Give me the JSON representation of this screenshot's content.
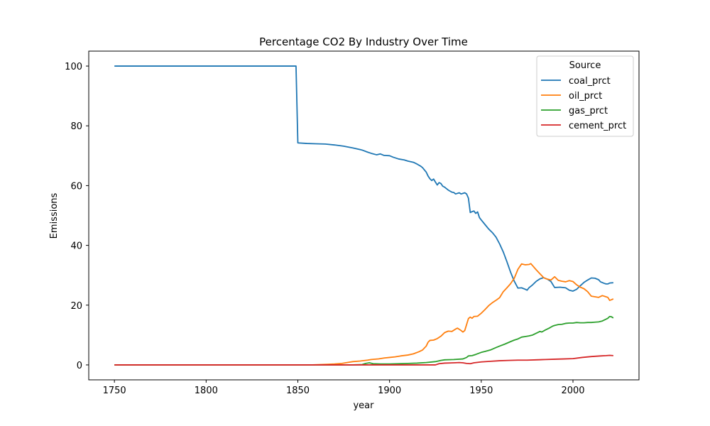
{
  "chart_data": {
    "type": "line",
    "title": "Percentage CO2 By Industry Over Time",
    "xlabel": "year",
    "ylabel": "Emissions",
    "xlim": [
      1736,
      2036
    ],
    "ylim": [
      -5,
      105
    ],
    "xticks": [
      1750,
      1800,
      1850,
      1900,
      1950,
      2000
    ],
    "yticks": [
      0,
      20,
      40,
      60,
      80,
      100
    ],
    "grid": false,
    "legend": {
      "title": "Source",
      "placement": "top-right"
    },
    "series": [
      {
        "name": "coal_prct",
        "color": "#1f77b4",
        "points": [
          [
            1750,
            100
          ],
          [
            1849,
            100
          ],
          [
            1850,
            74.3
          ],
          [
            1855,
            74.1
          ],
          [
            1860,
            74
          ],
          [
            1865,
            73.9
          ],
          [
            1870,
            73.6
          ],
          [
            1875,
            73.2
          ],
          [
            1880,
            72.6
          ],
          [
            1885,
            71.9
          ],
          [
            1888,
            71.2
          ],
          [
            1890,
            70.8
          ],
          [
            1893,
            70.3
          ],
          [
            1895,
            70.6
          ],
          [
            1897,
            70.1
          ],
          [
            1900,
            70
          ],
          [
            1902,
            69.5
          ],
          [
            1905,
            68.9
          ],
          [
            1908,
            68.6
          ],
          [
            1910,
            68.2
          ],
          [
            1913,
            67.8
          ],
          [
            1915,
            67.2
          ],
          [
            1917,
            66.5
          ],
          [
            1918,
            66
          ],
          [
            1920,
            64.5
          ],
          [
            1921,
            63.2
          ],
          [
            1922,
            62.3
          ],
          [
            1923,
            61.7
          ],
          [
            1924,
            62.2
          ],
          [
            1925,
            61.2
          ],
          [
            1926,
            60.2
          ],
          [
            1927,
            61
          ],
          [
            1928,
            60.7
          ],
          [
            1929,
            59.8
          ],
          [
            1930,
            59.5
          ],
          [
            1932,
            58.5
          ],
          [
            1934,
            57.8
          ],
          [
            1935,
            57.7
          ],
          [
            1936,
            57.2
          ],
          [
            1938,
            57.6
          ],
          [
            1939,
            57.2
          ],
          [
            1940,
            57.4
          ],
          [
            1941,
            57.6
          ],
          [
            1942,
            57.2
          ],
          [
            1943,
            55.8
          ],
          [
            1944,
            51
          ],
          [
            1945,
            51.3
          ],
          [
            1946,
            51.5
          ],
          [
            1947,
            50.7
          ],
          [
            1948,
            51.2
          ],
          [
            1949,
            49.3
          ],
          [
            1950,
            48.5
          ],
          [
            1952,
            47
          ],
          [
            1954,
            45.5
          ],
          [
            1956,
            44.3
          ],
          [
            1958,
            42.8
          ],
          [
            1960,
            40.5
          ],
          [
            1962,
            37.8
          ],
          [
            1964,
            34.5
          ],
          [
            1966,
            31
          ],
          [
            1968,
            28
          ],
          [
            1970,
            25.7
          ],
          [
            1972,
            25.8
          ],
          [
            1974,
            25.3
          ],
          [
            1975,
            25
          ],
          [
            1976,
            25.8
          ],
          [
            1978,
            26.8
          ],
          [
            1980,
            28
          ],
          [
            1982,
            28.8
          ],
          [
            1984,
            29.2
          ],
          [
            1986,
            28.7
          ],
          [
            1988,
            27.9
          ],
          [
            1990,
            25.9
          ],
          [
            1993,
            26
          ],
          [
            1996,
            25.8
          ],
          [
            1998,
            25
          ],
          [
            2000,
            24.7
          ],
          [
            2002,
            25.3
          ],
          [
            2004,
            26.5
          ],
          [
            2006,
            27.6
          ],
          [
            2008,
            28.4
          ],
          [
            2010,
            29.1
          ],
          [
            2012,
            29
          ],
          [
            2014,
            28.5
          ],
          [
            2015,
            27.8
          ],
          [
            2017,
            27.3
          ],
          [
            2018,
            27.1
          ],
          [
            2019,
            27.1
          ],
          [
            2020,
            27.4
          ],
          [
            2022,
            27.5
          ]
        ]
      },
      {
        "name": "oil_prct",
        "color": "#ff7f0e",
        "points": [
          [
            1750,
            0
          ],
          [
            1858,
            0
          ],
          [
            1862,
            0.1
          ],
          [
            1866,
            0.2
          ],
          [
            1870,
            0.3
          ],
          [
            1874,
            0.5
          ],
          [
            1878,
            0.9
          ],
          [
            1880,
            1.1
          ],
          [
            1884,
            1.3
          ],
          [
            1888,
            1.6
          ],
          [
            1890,
            1.8
          ],
          [
            1894,
            2
          ],
          [
            1897,
            2.3
          ],
          [
            1900,
            2.5
          ],
          [
            1903,
            2.7
          ],
          [
            1906,
            3
          ],
          [
            1910,
            3.3
          ],
          [
            1913,
            3.7
          ],
          [
            1916,
            4.4
          ],
          [
            1918,
            5
          ],
          [
            1920,
            6.3
          ],
          [
            1921,
            7.6
          ],
          [
            1922,
            8.2
          ],
          [
            1924,
            8.3
          ],
          [
            1926,
            8.8
          ],
          [
            1928,
            9.6
          ],
          [
            1930,
            10.8
          ],
          [
            1932,
            11.3
          ],
          [
            1934,
            11.2
          ],
          [
            1936,
            12
          ],
          [
            1937,
            12.3
          ],
          [
            1939,
            11.5
          ],
          [
            1940,
            11
          ],
          [
            1941,
            11.5
          ],
          [
            1942,
            13.5
          ],
          [
            1943,
            15.5
          ],
          [
            1944,
            16
          ],
          [
            1945,
            15.6
          ],
          [
            1946,
            16.2
          ],
          [
            1948,
            16.3
          ],
          [
            1950,
            17.3
          ],
          [
            1952,
            18.5
          ],
          [
            1954,
            19.8
          ],
          [
            1956,
            20.8
          ],
          [
            1958,
            21.6
          ],
          [
            1960,
            22.5
          ],
          [
            1962,
            24.5
          ],
          [
            1964,
            25.8
          ],
          [
            1966,
            27.2
          ],
          [
            1968,
            29
          ],
          [
            1970,
            32
          ],
          [
            1972,
            33.8
          ],
          [
            1974,
            33.5
          ],
          [
            1976,
            33.6
          ],
          [
            1977,
            33.9
          ],
          [
            1978,
            33.2
          ],
          [
            1980,
            31.8
          ],
          [
            1982,
            30.5
          ],
          [
            1984,
            29.2
          ],
          [
            1986,
            28.7
          ],
          [
            1988,
            28.4
          ],
          [
            1990,
            29.5
          ],
          [
            1992,
            28.3
          ],
          [
            1994,
            28
          ],
          [
            1996,
            27.8
          ],
          [
            1998,
            28.2
          ],
          [
            2000,
            27.9
          ],
          [
            2002,
            26.8
          ],
          [
            2004,
            26
          ],
          [
            2006,
            25.5
          ],
          [
            2008,
            24.5
          ],
          [
            2010,
            23
          ],
          [
            2012,
            22.8
          ],
          [
            2014,
            22.6
          ],
          [
            2016,
            23.2
          ],
          [
            2018,
            22.8
          ],
          [
            2019,
            22.6
          ],
          [
            2020,
            21.6
          ],
          [
            2021,
            21.8
          ],
          [
            2022,
            22.1
          ]
        ]
      },
      {
        "name": "gas_prct",
        "color": "#2ca02c",
        "points": [
          [
            1750,
            0
          ],
          [
            1880,
            0
          ],
          [
            1885,
            0.1
          ],
          [
            1887,
            0.5
          ],
          [
            1889,
            0.7
          ],
          [
            1891,
            0.4
          ],
          [
            1895,
            0.3
          ],
          [
            1900,
            0.3
          ],
          [
            1905,
            0.4
          ],
          [
            1910,
            0.5
          ],
          [
            1915,
            0.6
          ],
          [
            1920,
            0.8
          ],
          [
            1925,
            1.1
          ],
          [
            1928,
            1.5
          ],
          [
            1930,
            1.7
          ],
          [
            1935,
            1.8
          ],
          [
            1940,
            2
          ],
          [
            1942,
            2.5
          ],
          [
            1943,
            3
          ],
          [
            1945,
            3.1
          ],
          [
            1947,
            3.5
          ],
          [
            1950,
            4.2
          ],
          [
            1952,
            4.5
          ],
          [
            1955,
            5
          ],
          [
            1958,
            5.8
          ],
          [
            1960,
            6.3
          ],
          [
            1963,
            7
          ],
          [
            1966,
            7.8
          ],
          [
            1968,
            8.3
          ],
          [
            1970,
            8.7
          ],
          [
            1972,
            9.3
          ],
          [
            1974,
            9.5
          ],
          [
            1976,
            9.7
          ],
          [
            1978,
            10
          ],
          [
            1980,
            10.6
          ],
          [
            1982,
            11.2
          ],
          [
            1983,
            11
          ],
          [
            1985,
            11.7
          ],
          [
            1987,
            12.3
          ],
          [
            1989,
            13
          ],
          [
            1990,
            13.2
          ],
          [
            1992,
            13.5
          ],
          [
            1994,
            13.6
          ],
          [
            1996,
            13.9
          ],
          [
            1998,
            14
          ],
          [
            2000,
            14
          ],
          [
            2002,
            14.2
          ],
          [
            2004,
            14.1
          ],
          [
            2006,
            14.1
          ],
          [
            2008,
            14.2
          ],
          [
            2010,
            14.2
          ],
          [
            2012,
            14.3
          ],
          [
            2014,
            14.4
          ],
          [
            2016,
            14.7
          ],
          [
            2017,
            15
          ],
          [
            2018,
            15.3
          ],
          [
            2019,
            15.6
          ],
          [
            2020,
            16.2
          ],
          [
            2021,
            16.1
          ],
          [
            2022,
            15.7
          ]
        ]
      },
      {
        "name": "cement_prct",
        "color": "#d62728",
        "points": [
          [
            1750,
            0
          ],
          [
            1925,
            0
          ],
          [
            1927,
            0.4
          ],
          [
            1930,
            0.6
          ],
          [
            1935,
            0.7
          ],
          [
            1938,
            0.8
          ],
          [
            1940,
            0.7
          ],
          [
            1942,
            0.5
          ],
          [
            1944,
            0.4
          ],
          [
            1946,
            0.7
          ],
          [
            1950,
            1
          ],
          [
            1955,
            1.2
          ],
          [
            1960,
            1.4
          ],
          [
            1965,
            1.5
          ],
          [
            1970,
            1.6
          ],
          [
            1975,
            1.6
          ],
          [
            1980,
            1.7
          ],
          [
            1985,
            1.8
          ],
          [
            1990,
            1.9
          ],
          [
            1995,
            2
          ],
          [
            2000,
            2.1
          ],
          [
            2005,
            2.5
          ],
          [
            2010,
            2.8
          ],
          [
            2015,
            3
          ],
          [
            2018,
            3.1
          ],
          [
            2020,
            3.2
          ],
          [
            2022,
            3.1
          ]
        ]
      }
    ]
  }
}
